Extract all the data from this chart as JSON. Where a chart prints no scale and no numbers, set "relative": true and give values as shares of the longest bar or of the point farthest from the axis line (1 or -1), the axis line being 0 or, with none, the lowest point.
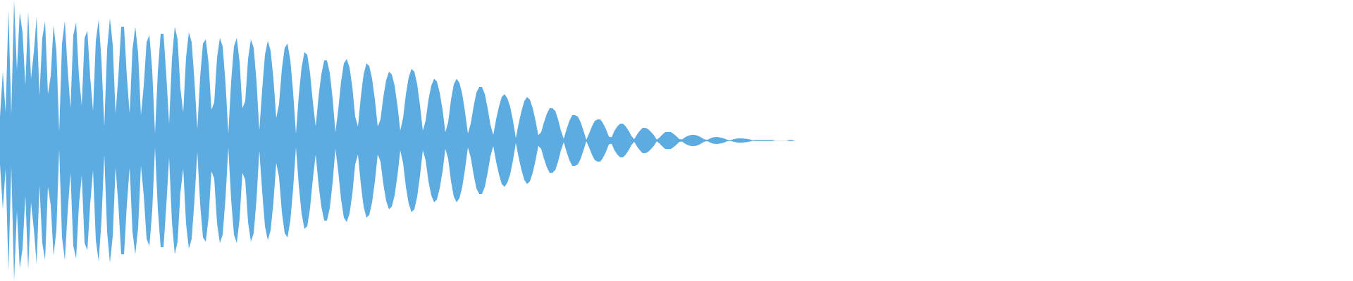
{
  "chart_data": {
    "type": "area",
    "relative": true,
    "categories": [
      null,
      null,
      null,
      null,
      null,
      null,
      null,
      null,
      null,
      null,
      null,
      null,
      null,
      null,
      null,
      null,
      null,
      null,
      null,
      null,
      null,
      null,
      null,
      null,
      null,
      null,
      null,
      null,
      null,
      null,
      null,
      null,
      null,
      null,
      null,
      null,
      null,
      null,
      null,
      null,
      null,
      null,
      null,
      null,
      null,
      null,
      null,
      null,
      null,
      null,
      null,
      null,
      null,
      null,
      null,
      null,
      null,
      null,
      null,
      null,
      null,
      null,
      null,
      null,
      null,
      null,
      null,
      null,
      null,
      null,
      null,
      null,
      null,
      null,
      null,
      null,
      null,
      null,
      null,
      null,
      null,
      null,
      null,
      null,
      null,
      null,
      null,
      null,
      null,
      null,
      null,
      null,
      null,
      null,
      null,
      null,
      null,
      null,
      null,
      null,
      null,
      null,
      null,
      null,
      null,
      null,
      null,
      null,
      null,
      null,
      null,
      null,
      null,
      null,
      null,
      null,
      null,
      null,
      null,
      null,
      null,
      null,
      null,
      null,
      null,
      null,
      null,
      null,
      null,
      null,
      null,
      null,
      null,
      null,
      null,
      null,
      null,
      null,
      null,
      null,
      null,
      null,
      null,
      null,
      null,
      null,
      null,
      null,
      null,
      null,
      null,
      null,
      null,
      null,
      null,
      null,
      null,
      null,
      null,
      null,
      null,
      null,
      null,
      null,
      null,
      null,
      null,
      null,
      null,
      null,
      null,
      null,
      null,
      null,
      null,
      null,
      null,
      null,
      null,
      null,
      null,
      null,
      null,
      null,
      null,
      null,
      null,
      null,
      null,
      null,
      null,
      null,
      null,
      null,
      null,
      null,
      null,
      null,
      null,
      null,
      null,
      null,
      null,
      null,
      null,
      null,
      null,
      null,
      null,
      null,
      null,
      null,
      null,
      null,
      null,
      null,
      null,
      null,
      null,
      null,
      null,
      null,
      null,
      null,
      null,
      null,
      null,
      null,
      null,
      null,
      null,
      null,
      null,
      null,
      null,
      null,
      null,
      null,
      null,
      null,
      null,
      null,
      null,
      null,
      null,
      null,
      null,
      null,
      null,
      null,
      null,
      null,
      null,
      null,
      null,
      null,
      null,
      null,
      null,
      null,
      null,
      null,
      null,
      null,
      null,
      null,
      null,
      null,
      null,
      null,
      null,
      null,
      null,
      null,
      null,
      null,
      null,
      null,
      null,
      null,
      null,
      null,
      null
    ],
    "series": [
      {
        "color": "#5dace1",
        "values": [
          0.17,
          0.49,
          0.2,
          0.93,
          0.18,
          1,
          0.5,
          0.91,
          0.77,
          0.39,
          0.92,
          0.44,
          0.63,
          0.88,
          0.32,
          0.73,
          0.85,
          0.33,
          0.46,
          0.82,
          0.64,
          0.06,
          0.69,
          0.85,
          0.51,
          0.23,
          0.75,
          0.84,
          0.46,
          0.25,
          0.73,
          0.78,
          0.45,
          0.21,
          0.71,
          0.86,
          0.57,
          0.1,
          0.65,
          0.87,
          0.68,
          0.19,
          0.46,
          0.81,
          0.81,
          0.46,
          0.19,
          0.65,
          0.81,
          0.62,
          0.18,
          0.39,
          0.7,
          0.75,
          0.5,
          0.05,
          0.49,
          0.76,
          0.76,
          0.46,
          0.12,
          0.58,
          0.81,
          0.72,
          0.37,
          0.2,
          0.59,
          0.77,
          0.7,
          0.42,
          0.08,
          0.45,
          0.69,
          0.72,
          0.55,
          0.22,
          0.27,
          0.59,
          0.73,
          0.67,
          0.41,
          0.05,
          0.42,
          0.67,
          0.73,
          0.56,
          0.23,
          0.28,
          0.58,
          0.72,
          0.66,
          0.42,
          0.07,
          0.36,
          0.61,
          0.71,
          0.64,
          0.44,
          0.16,
          0.26,
          0.51,
          0.66,
          0.69,
          0.57,
          0.34,
          0.05,
          0.32,
          0.52,
          0.63,
          0.61,
          0.48,
          0.27,
          0.1,
          0.31,
          0.47,
          0.57,
          0.57,
          0.48,
          0.3,
          0.06,
          0.22,
          0.42,
          0.55,
          0.58,
          0.52,
          0.38,
          0.17,
          0.1,
          0.31,
          0.47,
          0.55,
          0.53,
          0.44,
          0.29,
          0.1,
          0.15,
          0.31,
          0.43,
          0.49,
          0.47,
          0.39,
          0.25,
          0.07,
          0.16,
          0.33,
          0.45,
          0.51,
          0.49,
          0.4,
          0.25,
          0.07,
          0.14,
          0.29,
          0.39,
          0.44,
          0.42,
          0.34,
          0.22,
          0.06,
          0.13,
          0.29,
          0.4,
          0.44,
          0.41,
          0.33,
          0.2,
          0.05,
          0.12,
          0.24,
          0.34,
          0.38,
          0.38,
          0.33,
          0.23,
          0.11,
          0.039,
          0.15,
          0.24,
          0.31,
          0.33,
          0.3,
          0.24,
          0.14,
          0.019,
          0.12,
          0.21,
          0.28,
          0.31,
          0.29,
          0.23,
          0.14,
          0.037,
          0.06,
          0.13,
          0.19,
          0.23,
          0.23,
          0.21,
          0.15,
          0.07,
          0.013,
          0.08,
          0.14,
          0.18,
          0.18,
          0.17,
          0.13,
          0.07,
          0.005,
          0.05,
          0.1,
          0.14,
          0.15,
          0.15,
          0.12,
          0.08,
          0.028,
          0.024,
          0.07,
          0.1,
          0.12,
          0.12,
          0.1,
          0.07,
          0.033,
          0.009,
          0.043,
          0.07,
          0.09,
          0.09,
          0.08,
          0.06,
          0.037,
          0.006,
          0.021,
          0.043,
          0.06,
          0.06,
          0.06,
          0.046,
          0.03,
          0.01,
          0.008,
          0.022,
          0.033,
          0.039,
          0.041,
          0.037,
          0.03,
          0.019,
          0.007,
          0.005,
          0.015,
          0.022,
          0.025,
          0.024,
          0.02,
          0.014,
          0.005,
          0.003,
          0.008,
          0.013,
          0.015,
          0.015,
          0.014,
          0.011,
          0.007,
          0.002,
          0.004,
          0.004,
          0.004,
          0.004,
          0.004,
          0.004,
          0.004,
          0,
          0,
          0,
          0,
          0,
          0.004,
          0.004,
          0
        ]
      },
      {
        "color": "#5dace1",
        "values": [
          -0.17,
          -0.49,
          -0.2,
          -0.93,
          -0.18,
          -1,
          -0.5,
          -0.91,
          -0.77,
          -0.39,
          -0.92,
          -0.44,
          -0.63,
          -0.88,
          -0.32,
          -0.73,
          -0.85,
          -0.33,
          -0.46,
          -0.82,
          -0.64,
          -0.06,
          -0.69,
          -0.85,
          -0.51,
          -0.23,
          -0.75,
          -0.84,
          -0.46,
          -0.25,
          -0.73,
          -0.78,
          -0.45,
          -0.21,
          -0.71,
          -0.86,
          -0.57,
          -0.1,
          -0.65,
          -0.87,
          -0.68,
          -0.19,
          -0.46,
          -0.81,
          -0.81,
          -0.46,
          -0.19,
          -0.65,
          -0.81,
          -0.62,
          -0.18,
          -0.39,
          -0.7,
          -0.75,
          -0.5,
          -0.05,
          -0.49,
          -0.76,
          -0.76,
          -0.46,
          -0.12,
          -0.58,
          -0.81,
          -0.72,
          -0.37,
          -0.2,
          -0.59,
          -0.77,
          -0.7,
          -0.42,
          -0.08,
          -0.45,
          -0.69,
          -0.72,
          -0.55,
          -0.22,
          -0.27,
          -0.59,
          -0.73,
          -0.67,
          -0.41,
          -0.05,
          -0.42,
          -0.67,
          -0.73,
          -0.56,
          -0.23,
          -0.28,
          -0.58,
          -0.72,
          -0.66,
          -0.42,
          -0.07,
          -0.36,
          -0.61,
          -0.71,
          -0.64,
          -0.44,
          -0.16,
          -0.26,
          -0.51,
          -0.66,
          -0.69,
          -0.57,
          -0.34,
          -0.05,
          -0.32,
          -0.52,
          -0.63,
          -0.61,
          -0.48,
          -0.27,
          -0.1,
          -0.31,
          -0.47,
          -0.57,
          -0.57,
          -0.48,
          -0.3,
          -0.06,
          -0.22,
          -0.42,
          -0.55,
          -0.58,
          -0.52,
          -0.38,
          -0.17,
          -0.1,
          -0.31,
          -0.47,
          -0.55,
          -0.53,
          -0.44,
          -0.29,
          -0.1,
          -0.15,
          -0.31,
          -0.43,
          -0.49,
          -0.47,
          -0.39,
          -0.25,
          -0.07,
          -0.16,
          -0.33,
          -0.45,
          -0.51,
          -0.49,
          -0.4,
          -0.25,
          -0.07,
          -0.14,
          -0.29,
          -0.39,
          -0.44,
          -0.42,
          -0.34,
          -0.22,
          -0.06,
          -0.13,
          -0.29,
          -0.4,
          -0.44,
          -0.41,
          -0.33,
          -0.2,
          -0.05,
          -0.12,
          -0.24,
          -0.34,
          -0.38,
          -0.38,
          -0.33,
          -0.23,
          -0.11,
          -0.039,
          -0.15,
          -0.24,
          -0.31,
          -0.33,
          -0.3,
          -0.24,
          -0.14,
          -0.019,
          -0.12,
          -0.21,
          -0.28,
          -0.31,
          -0.29,
          -0.23,
          -0.14,
          -0.037,
          -0.06,
          -0.13,
          -0.19,
          -0.23,
          -0.23,
          -0.21,
          -0.15,
          -0.07,
          -0.013,
          -0.08,
          -0.14,
          -0.18,
          -0.18,
          -0.17,
          -0.13,
          -0.07,
          -0.005,
          -0.05,
          -0.1,
          -0.14,
          -0.15,
          -0.15,
          -0.12,
          -0.08,
          -0.028,
          -0.024,
          -0.07,
          -0.1,
          -0.12,
          -0.12,
          -0.1,
          -0.07,
          -0.033,
          -0.009,
          -0.043,
          -0.07,
          -0.09,
          -0.09,
          -0.08,
          -0.06,
          -0.037,
          -0.006,
          -0.021,
          -0.043,
          -0.06,
          -0.06,
          -0.06,
          -0.046,
          -0.03,
          -0.01,
          -0.008,
          -0.022,
          -0.033,
          -0.039,
          -0.041,
          -0.037,
          -0.03,
          -0.019,
          -0.007,
          -0.005,
          -0.015,
          -0.022,
          -0.025,
          -0.024,
          -0.02,
          -0.014,
          -0.005,
          -0.003,
          -0.008,
          -0.013,
          -0.015,
          -0.015,
          -0.014,
          -0.011,
          -0.007,
          -0.002,
          -0.004,
          -0.004,
          -0.004,
          -0.004,
          -0.004,
          -0.004,
          -0.004,
          0,
          0,
          0,
          0,
          0,
          -0.004,
          -0.004,
          0
        ]
      }
    ]
  }
}
